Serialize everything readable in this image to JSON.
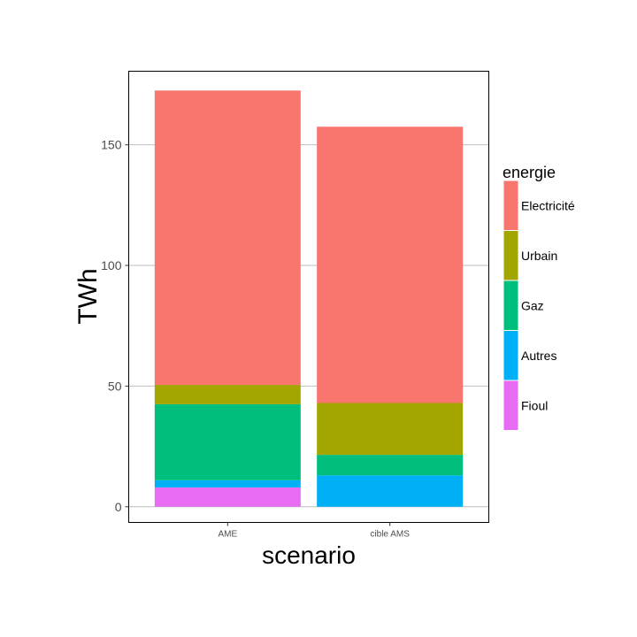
{
  "chart_data": {
    "type": "bar",
    "stacked": true,
    "categories": [
      "AME",
      "cible AMS"
    ],
    "xlabel": "scenario",
    "ylabel": "TWh",
    "ylim": [
      -6.5,
      180.5
    ],
    "yticks": [
      0,
      50,
      100,
      150
    ],
    "grid": "horizontal major",
    "legend": {
      "title": "energie",
      "position": "right"
    },
    "series": [
      {
        "name": "Fioul",
        "color": "#E76BF3",
        "values": [
          8,
          0
        ]
      },
      {
        "name": "Autres",
        "color": "#00B0F6",
        "values": [
          3,
          13
        ]
      },
      {
        "name": "Gaz",
        "color": "#00BF7D",
        "values": [
          31.5,
          8.5
        ]
      },
      {
        "name": "Urbain",
        "color": "#A3A500",
        "values": [
          8,
          21.5
        ]
      },
      {
        "name": "Electricité",
        "color": "#F8766D",
        "values": [
          122,
          114.5
        ]
      }
    ]
  }
}
